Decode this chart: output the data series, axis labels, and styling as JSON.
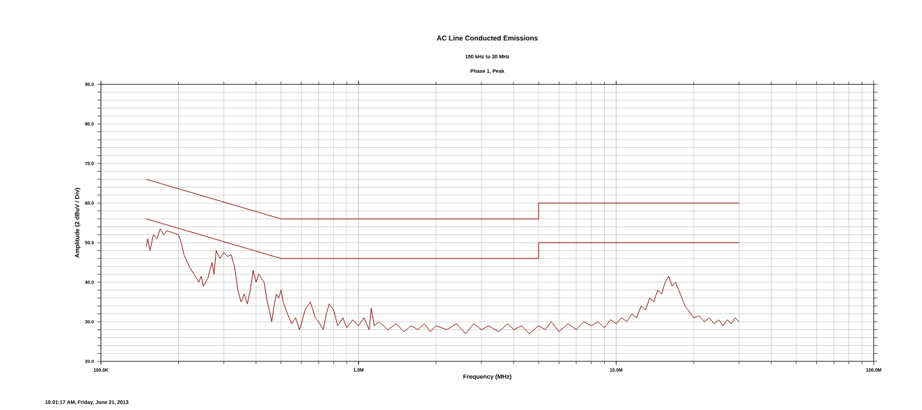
{
  "chart_data": {
    "type": "line",
    "title": "AC Line Conducted Emissions",
    "subtitle": "150 kHz to 30 MHz",
    "annotations": [
      "Phase 1, Peak",
      "10:01:17 AM, Friday, June 21, 2013"
    ],
    "xlabel": "Frequency (MHz)",
    "ylabel": "Amplitude (2 dBuV / Div)",
    "log": "x",
    "grid": true,
    "marker": "none",
    "line_style": "solid",
    "xlim": [
      100000,
      100000000
    ],
    "ylim": [
      20,
      90
    ],
    "xticks": [
      {
        "value": 100000,
        "label": "100.0K"
      },
      {
        "value": 1000000,
        "label": "1.0M"
      },
      {
        "value": 10000000,
        "label": "10.0M"
      },
      {
        "value": 100000000,
        "label": "100.0M"
      }
    ],
    "yticks": [
      {
        "value": 20,
        "label": "20.0"
      },
      {
        "value": 22,
        "label": null
      },
      {
        "value": 24,
        "label": null
      },
      {
        "value": 26,
        "label": null
      },
      {
        "value": 28,
        "label": null
      },
      {
        "value": 30,
        "label": "30.0"
      },
      {
        "value": 32,
        "label": null
      },
      {
        "value": 34,
        "label": null
      },
      {
        "value": 36,
        "label": null
      },
      {
        "value": 38,
        "label": null
      },
      {
        "value": 40,
        "label": "40.0"
      },
      {
        "value": 42,
        "label": null
      },
      {
        "value": 44,
        "label": null
      },
      {
        "value": 46,
        "label": null
      },
      {
        "value": 48,
        "label": null
      },
      {
        "value": 50,
        "label": "50.0"
      },
      {
        "value": 52,
        "label": null
      },
      {
        "value": 54,
        "label": null
      },
      {
        "value": 56,
        "label": null
      },
      {
        "value": 58,
        "label": null
      },
      {
        "value": 60,
        "label": "60.0"
      },
      {
        "value": 62,
        "label": null
      },
      {
        "value": 64,
        "label": null
      },
      {
        "value": 66,
        "label": null
      },
      {
        "value": 68,
        "label": null
      },
      {
        "value": 70,
        "label": "70.0"
      },
      {
        "value": 72,
        "label": null
      },
      {
        "value": 74,
        "label": null
      },
      {
        "value": 76,
        "label": null
      },
      {
        "value": 78,
        "label": null
      },
      {
        "value": 80,
        "label": "80.0"
      },
      {
        "value": 82,
        "label": null
      },
      {
        "value": 84,
        "label": null
      },
      {
        "value": 86,
        "label": null
      },
      {
        "value": 88,
        "label": null
      },
      {
        "value": 90,
        "label": "90.0"
      }
    ],
    "series": [
      {
        "color": "#800000",
        "x": [
          150000,
          500000,
          5000000,
          5000000,
          30000000
        ],
        "values": [
          66,
          56,
          56,
          60,
          60
        ]
      },
      {
        "color": "#800000",
        "x": [
          150000,
          500000,
          5000000,
          5000000,
          30000000
        ],
        "values": [
          56,
          46,
          46,
          50,
          50
        ]
      },
      {
        "color": "#800000",
        "x": [
          150000,
          152000,
          155000,
          160000,
          165000,
          170000,
          175000,
          180000,
          190000,
          200000,
          205000,
          210000,
          220000,
          230000,
          240000,
          245000,
          250000,
          260000,
          270000,
          275000,
          280000,
          290000,
          300000,
          310000,
          320000,
          330000,
          340000,
          350000,
          360000,
          370000,
          380000,
          390000,
          400000,
          410000,
          420000,
          430000,
          440000,
          450000,
          460000,
          470000,
          480000,
          490000,
          500000,
          510000,
          530000,
          550000,
          570000,
          590000,
          600000,
          620000,
          650000,
          680000,
          700000,
          730000,
          750000,
          770000,
          800000,
          830000,
          870000,
          900000,
          950000,
          1000000,
          1050000,
          1100000,
          1120000,
          1150000,
          1200000,
          1300000,
          1400000,
          1500000,
          1600000,
          1700000,
          1800000,
          1900000,
          2000000,
          2200000,
          2400000,
          2600000,
          2800000,
          3000000,
          3200000,
          3500000,
          3800000,
          4000000,
          4300000,
          4600000,
          5000000,
          5300000,
          5600000,
          6000000,
          6500000,
          7000000,
          7500000,
          8000000,
          8500000,
          9000000,
          9500000,
          10000000,
          10500000,
          11000000,
          11500000,
          12000000,
          12500000,
          13000000,
          13500000,
          14000000,
          14500000,
          15000000,
          15500000,
          16000000,
          16500000,
          17000000,
          17500000,
          18000000,
          18500000,
          19000000,
          19500000,
          20000000,
          21000000,
          22000000,
          23000000,
          24000000,
          25000000,
          26000000,
          27000000,
          28000000,
          29000000,
          30000000
        ],
        "values": [
          49,
          51,
          48,
          52,
          51,
          53.5,
          52,
          53,
          52.5,
          52,
          50,
          47,
          44,
          42,
          40,
          41.5,
          39,
          41,
          45,
          42,
          48,
          46,
          47.5,
          46.5,
          47,
          44,
          38,
          35,
          37,
          34.5,
          38,
          43,
          40,
          42,
          41,
          40,
          36,
          33,
          30,
          34,
          37,
          36,
          38,
          35,
          32,
          29.5,
          31,
          28,
          29.5,
          33,
          35,
          31,
          30,
          28,
          32,
          34.5,
          33,
          29,
          31,
          28.5,
          30.5,
          29,
          31,
          28,
          33.5,
          29,
          30,
          28,
          29.5,
          27.5,
          29,
          28,
          29.5,
          27.5,
          29,
          28,
          29.5,
          27,
          29.5,
          28,
          29,
          27.5,
          29.5,
          28,
          29,
          27,
          29,
          28,
          30,
          27.5,
          29.5,
          28,
          30,
          29,
          30,
          28.5,
          30.5,
          29.5,
          31,
          30,
          32,
          31,
          34,
          33,
          36,
          35,
          38,
          37,
          40,
          41.5,
          39,
          40,
          38,
          36,
          34,
          33,
          32,
          31,
          31.5,
          30,
          31,
          29.5,
          30.5,
          29,
          30.5,
          29.5,
          31,
          30
        ]
      }
    ]
  }
}
